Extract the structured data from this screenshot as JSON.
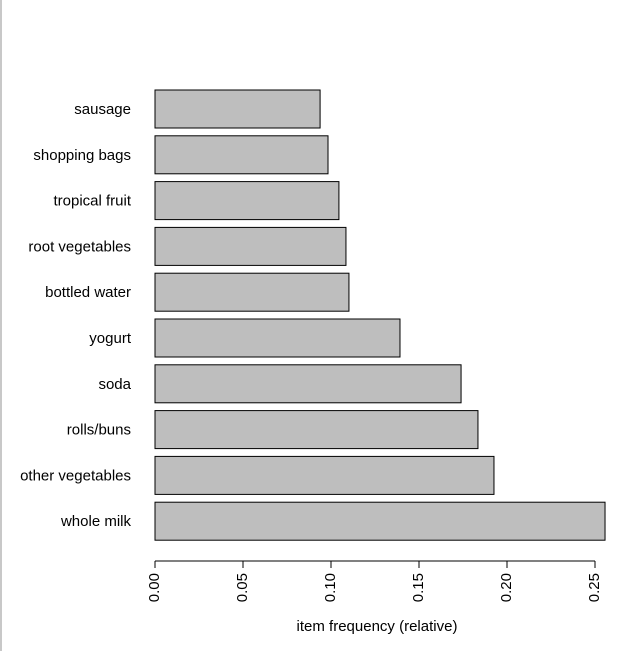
{
  "chart_data": {
    "type": "bar",
    "orientation": "horizontal",
    "x_label": "item frequency (relative)",
    "categories": [
      "sausage",
      "shopping bags",
      "tropical fruit",
      "root vegetables",
      "bottled water",
      "yogurt",
      "soda",
      "rolls/buns",
      "other vegetables",
      "whole milk"
    ],
    "values": [
      0.0938,
      0.0983,
      0.1045,
      0.1085,
      0.1102,
      0.1392,
      0.1739,
      0.1835,
      0.1926,
      0.2557
    ],
    "color": "#bebebe",
    "xlim": [
      0,
      0.26
    ],
    "xticks": [
      {
        "value": 0,
        "label": "0.00"
      },
      {
        "value": 0.05,
        "label": "0.05"
      },
      {
        "value": 0.1,
        "label": "0.10"
      },
      {
        "value": 0.15,
        "label": "0.15"
      },
      {
        "value": 0.2,
        "label": "0.20"
      },
      {
        "value": 0.25,
        "label": "0.25"
      }
    ]
  }
}
